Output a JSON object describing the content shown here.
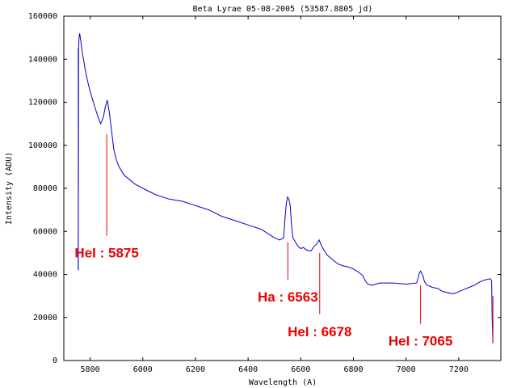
{
  "chart_data": {
    "type": "line",
    "title": "Beta Lyrae 05-08-2005 (53587.8805 jd)",
    "xlabel": "Wavelength (A)",
    "ylabel": "Intensity (ADU)",
    "xlim": [
      5700,
      7360
    ],
    "ylim": [
      0,
      160000
    ],
    "x_ticks": [
      5800,
      6000,
      6200,
      6400,
      6600,
      6800,
      7000,
      7200
    ],
    "y_ticks": [
      0,
      20000,
      40000,
      60000,
      80000,
      100000,
      120000,
      140000,
      160000
    ],
    "grid": false,
    "legend": "none",
    "colors": {
      "series": "#0000cc",
      "annotation": "#ee0000",
      "axes": "#000000"
    },
    "series": [
      {
        "x": [
          5755,
          5756,
          5758,
          5760,
          5765,
          5770,
          5775,
          5780,
          5790,
          5800,
          5810,
          5820,
          5830,
          5840,
          5850,
          5858,
          5865,
          5872,
          5880,
          5890,
          5900,
          5910,
          5920,
          5930,
          5950,
          5970,
          6000,
          6050,
          6100,
          6150,
          6200,
          6250,
          6300,
          6350,
          6400,
          6450,
          6500,
          6520,
          6535,
          6540,
          6545,
          6550,
          6555,
          6560,
          6565,
          6570,
          6575,
          6580,
          6590,
          6600,
          6610,
          6620,
          6630,
          6640,
          6650,
          6660,
          6670,
          6680,
          6700,
          6720,
          6740,
          6760,
          6780,
          6800,
          6820,
          6835,
          6845,
          6855,
          6870,
          6900,
          6950,
          7000,
          7040,
          7045,
          7050,
          7055,
          7060,
          7065,
          7070,
          7080,
          7100,
          7120,
          7140,
          7160,
          7180,
          7200,
          7220,
          7240,
          7260,
          7280,
          7300,
          7320,
          7325,
          7327,
          7330
        ],
        "y": [
          42000,
          145000,
          150000,
          152000,
          148000,
          143000,
          140000,
          136000,
          130000,
          125000,
          121000,
          117000,
          113000,
          110000,
          113000,
          118000,
          121000,
          116000,
          108000,
          98000,
          93000,
          90000,
          88000,
          86000,
          84000,
          82000,
          80000,
          77000,
          75000,
          74000,
          72000,
          70000,
          67000,
          65000,
          63000,
          61000,
          57000,
          56000,
          57000,
          66000,
          73000,
          76000,
          75000,
          72000,
          63000,
          57000,
          56000,
          55000,
          53000,
          52000,
          52500,
          51500,
          51000,
          51000,
          53000,
          54000,
          56000,
          53000,
          49000,
          47000,
          45000,
          44000,
          43500,
          42500,
          41000,
          39500,
          37000,
          35500,
          35000,
          36000,
          36000,
          35500,
          36000,
          38000,
          40500,
          41500,
          40500,
          39000,
          36500,
          35000,
          34000,
          33500,
          32000,
          31500,
          31000,
          32000,
          33000,
          34000,
          35000,
          36500,
          37500,
          38000,
          37000,
          20000,
          8000
        ]
      }
    ],
    "annotations": [
      {
        "text": "HeI : 5875",
        "x": 5863,
        "y_top": 105000,
        "y_bottom": 58000
      },
      {
        "text": "Ha : 6563",
        "x": 6551,
        "y_top": 55000,
        "y_bottom": 37500
      },
      {
        "text": "HeI : 6678",
        "x": 6672,
        "y_top": 50000,
        "y_bottom": 21500
      },
      {
        "text": "HeI : 7065",
        "x": 7055,
        "y_top": 35000,
        "y_bottom": 17000
      },
      {
        "text": "",
        "x": 7330,
        "y_top": 30000,
        "y_bottom": 8000
      }
    ]
  }
}
